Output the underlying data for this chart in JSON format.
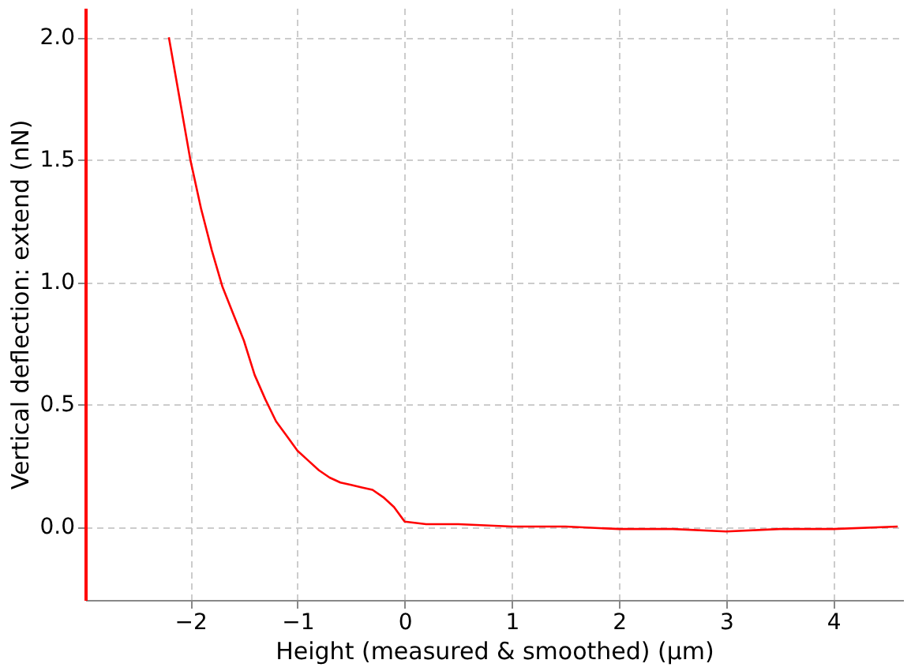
{
  "chart_data": {
    "type": "line",
    "xlabel": "Height (measured & smoothed) (µm)",
    "ylabel": "Vertical deflection: extend (nN)",
    "x": [
      -2.2,
      -2.1,
      -2.0,
      -1.9,
      -1.8,
      -1.7,
      -1.6,
      -1.5,
      -1.4,
      -1.3,
      -1.2,
      -1.1,
      -1.0,
      -0.9,
      -0.8,
      -0.7,
      -0.6,
      -0.5,
      -0.4,
      -0.3,
      -0.2,
      -0.1,
      0.0,
      0.2,
      0.5,
      1.0,
      1.5,
      2.0,
      2.5,
      3.0,
      3.5,
      4.0,
      4.6
    ],
    "series": [
      {
        "color": "#ff0000",
        "values": [
          2.0,
          1.75,
          1.5,
          1.3,
          1.13,
          0.98,
          0.87,
          0.76,
          0.62,
          0.52,
          0.43,
          0.37,
          0.31,
          0.27,
          0.23,
          0.2,
          0.18,
          0.17,
          0.16,
          0.15,
          0.12,
          0.08,
          0.02,
          0.01,
          0.01,
          0.0,
          0.0,
          -0.01,
          -0.01,
          -0.02,
          -0.01,
          -0.01,
          0.0
        ]
      }
    ],
    "xlim": [
      -2.98,
      4.65
    ],
    "xticks": [
      -2,
      -1,
      0,
      1,
      2,
      3,
      4
    ],
    "ylim": [
      -0.3,
      2.12
    ],
    "yticks": [
      {
        "value": 0,
        "label": "0.0"
      },
      0.5,
      {
        "value": 1,
        "label": "1.0"
      },
      1.5,
      {
        "value": 2,
        "label": "2.0"
      }
    ],
    "grid": true,
    "marker": "none",
    "line_style": "solid"
  }
}
